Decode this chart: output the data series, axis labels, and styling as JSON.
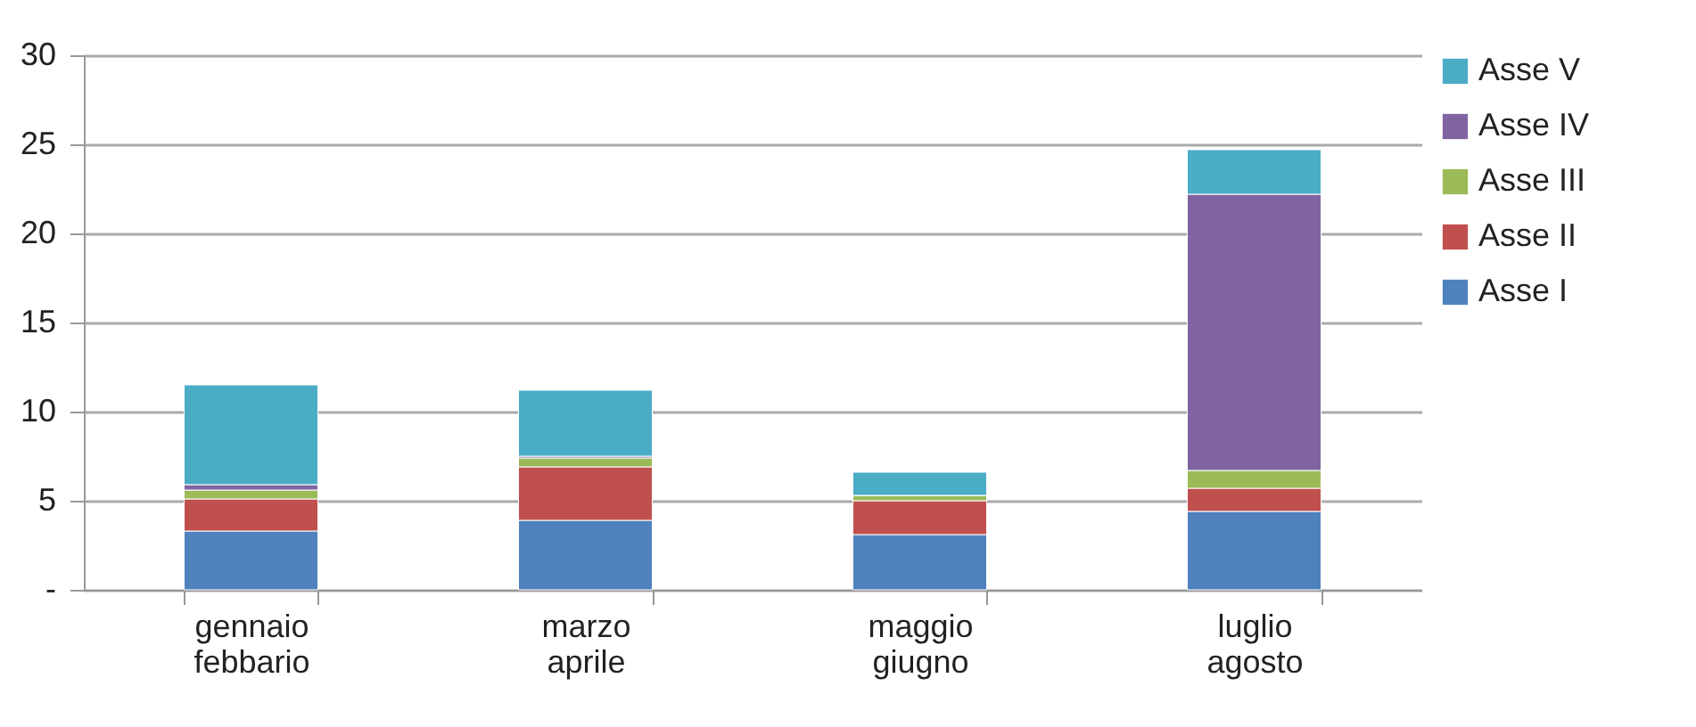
{
  "chart_data": {
    "type": "bar",
    "stacked": true,
    "categories": [
      "gennaio febbario",
      "marzo aprile",
      "maggio giugno",
      "luglio agosto"
    ],
    "series": [
      {
        "name": "Asse I",
        "color": "#4f81bd",
        "values": [
          3.3,
          3.9,
          3.1,
          4.4
        ]
      },
      {
        "name": "Asse II",
        "color": "#c0504d",
        "values": [
          1.8,
          3.0,
          1.9,
          1.3
        ]
      },
      {
        "name": "Asse III",
        "color": "#9bbb59",
        "values": [
          0.5,
          0.5,
          0.3,
          1.0
        ]
      },
      {
        "name": "Asse IV",
        "color": "#8064a2",
        "values": [
          0.3,
          0.1,
          0.0,
          15.5
        ]
      },
      {
        "name": "Asse V",
        "color": "#4bacc6",
        "values": [
          5.6,
          3.7,
          1.3,
          2.5
        ]
      }
    ],
    "ylim": [
      0,
      30
    ],
    "yticks": [
      {
        "value": 0,
        "label": "-"
      },
      5,
      10,
      15,
      20,
      25,
      30
    ],
    "grid": "y",
    "legend": "right"
  }
}
